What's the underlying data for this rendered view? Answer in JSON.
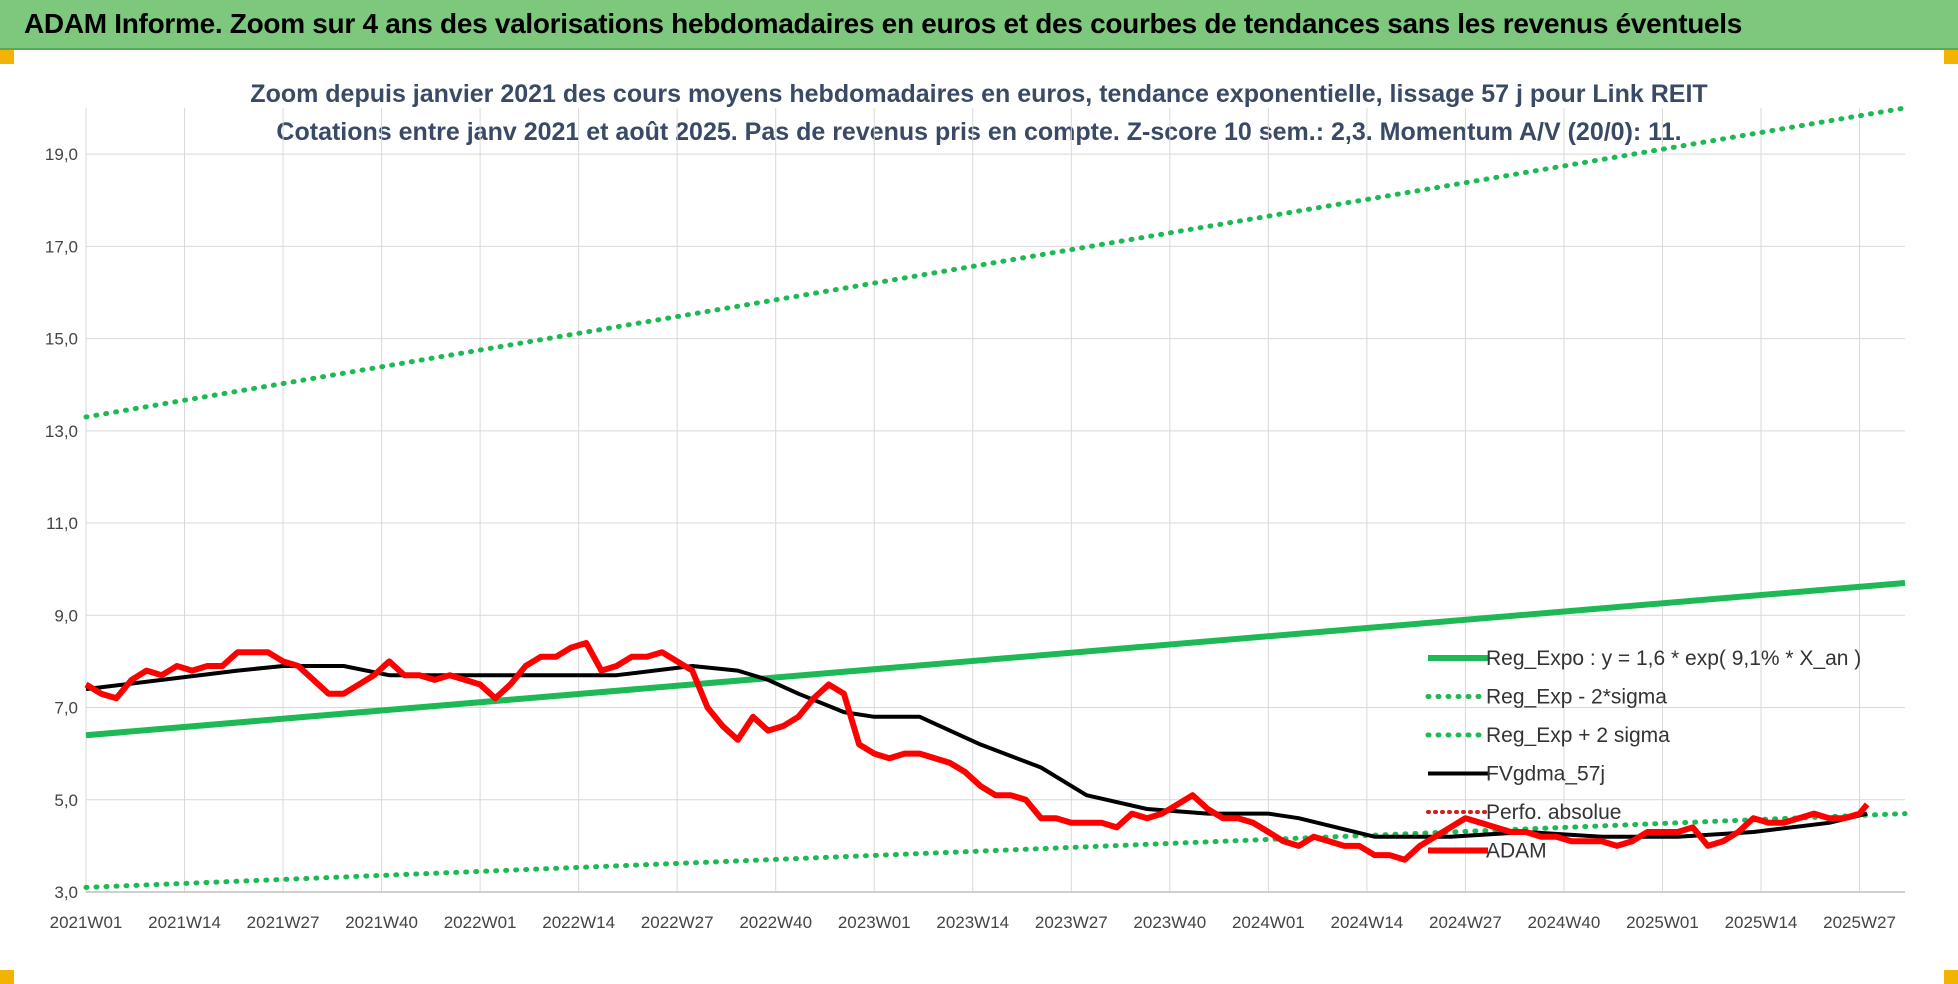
{
  "header": {
    "title": "ADAM Informe. Zoom sur 4 ans des valorisations hebdomadaires en euros et des courbes de tendances sans les revenus éventuels"
  },
  "colors": {
    "banner": "#7ec87e",
    "trend": "#1db954",
    "band": "#1db954",
    "ma": "#000000",
    "price": "#ff0000",
    "perf": "#d22020"
  },
  "chart_data": {
    "type": "line",
    "title": "Zoom depuis janvier 2021 des cours moyens hebdomadaires en euros, tendance exponentielle, lissage 57 j pour Link REIT",
    "subtitle": "Cotations entre janv 2021 et août 2025.  Pas de revenus pris en compte. Z-score 10 sem.: 2,3. Momentum A/V (20/0): 11.",
    "xlabel": "",
    "ylabel": "",
    "ylim": [
      3.0,
      20.0
    ],
    "y_ticks": [
      "3,0",
      "5,0",
      "7,0",
      "9,0",
      "11,0",
      "13,0",
      "15,0",
      "17,0",
      "19,0"
    ],
    "x_ticks": [
      "2021W01",
      "2021W14",
      "2021W27",
      "2021W40",
      "2022W01",
      "2022W14",
      "2022W27",
      "2022W40",
      "2023W01",
      "2023W14",
      "2023W27",
      "2023W40",
      "2024W01",
      "2024W14",
      "2024W27",
      "2024W40",
      "2025W01",
      "2025W14",
      "2025W27"
    ],
    "grid": true,
    "legend_position": "bottom-right",
    "series": [
      {
        "name": "Reg_Expo : y = 1,6 * exp( 9,1% *  X_an )",
        "style": "solid-green",
        "x": [
          0,
          240
        ],
        "values": [
          6.4,
          9.7
        ]
      },
      {
        "name": "Reg_Exp - 2*sigma",
        "style": "dotted-green",
        "x": [
          0,
          240
        ],
        "values": [
          3.1,
          4.7
        ]
      },
      {
        "name": "Reg_Exp + 2 sigma",
        "style": "dotted-green",
        "x": [
          0,
          240
        ],
        "values": [
          13.3,
          20.0
        ]
      },
      {
        "name": "FVgdma_57j",
        "style": "solid-black",
        "x": [
          0,
          10,
          20,
          26,
          34,
          40,
          50,
          60,
          70,
          80,
          86,
          90,
          94,
          100,
          104,
          110,
          118,
          126,
          132,
          140,
          148,
          156,
          160,
          170,
          180,
          190,
          200,
          210,
          220,
          230,
          235
        ],
        "values": [
          7.4,
          7.6,
          7.8,
          7.9,
          7.9,
          7.7,
          7.7,
          7.7,
          7.7,
          7.9,
          7.8,
          7.6,
          7.3,
          6.9,
          6.8,
          6.8,
          6.2,
          5.7,
          5.1,
          4.8,
          4.7,
          4.7,
          4.6,
          4.2,
          4.2,
          4.3,
          4.2,
          4.2,
          4.3,
          4.5,
          4.7
        ]
      },
      {
        "name": "Perfo. absolue",
        "style": "dotted-red",
        "x": [],
        "values": []
      },
      {
        "name": "ADAM",
        "style": "solid-red",
        "x": [
          0,
          2,
          4,
          6,
          8,
          10,
          12,
          14,
          16,
          18,
          20,
          22,
          24,
          26,
          28,
          30,
          32,
          34,
          36,
          38,
          40,
          42,
          44,
          46,
          48,
          50,
          52,
          54,
          56,
          58,
          60,
          62,
          64,
          66,
          68,
          70,
          72,
          74,
          76,
          78,
          80,
          82,
          84,
          86,
          88,
          90,
          92,
          94,
          96,
          98,
          100,
          102,
          104,
          106,
          108,
          110,
          112,
          114,
          116,
          118,
          120,
          122,
          124,
          126,
          128,
          130,
          132,
          134,
          136,
          138,
          140,
          142,
          144,
          146,
          148,
          150,
          152,
          154,
          156,
          158,
          160,
          162,
          164,
          166,
          168,
          170,
          172,
          174,
          176,
          178,
          180,
          182,
          184,
          186,
          188,
          190,
          192,
          194,
          196,
          198,
          200,
          202,
          204,
          206,
          208,
          210,
          212,
          214,
          216,
          218,
          220,
          222,
          224,
          226,
          228,
          230,
          232,
          234,
          235
        ],
        "values": [
          7.5,
          7.3,
          7.2,
          7.6,
          7.8,
          7.7,
          7.9,
          7.8,
          7.9,
          7.9,
          8.2,
          8.2,
          8.2,
          8.0,
          7.9,
          7.6,
          7.3,
          7.3,
          7.5,
          7.7,
          8.0,
          7.7,
          7.7,
          7.6,
          7.7,
          7.6,
          7.5,
          7.2,
          7.5,
          7.9,
          8.1,
          8.1,
          8.3,
          8.4,
          7.8,
          7.9,
          8.1,
          8.1,
          8.2,
          8.0,
          7.8,
          7.0,
          6.6,
          6.3,
          6.8,
          6.5,
          6.6,
          6.8,
          7.2,
          7.5,
          7.3,
          6.2,
          6.0,
          5.9,
          6.0,
          6.0,
          5.9,
          5.8,
          5.6,
          5.3,
          5.1,
          5.1,
          5.0,
          4.6,
          4.6,
          4.5,
          4.5,
          4.5,
          4.4,
          4.7,
          4.6,
          4.7,
          4.9,
          5.1,
          4.8,
          4.6,
          4.6,
          4.5,
          4.3,
          4.1,
          4.0,
          4.2,
          4.1,
          4.0,
          4.0,
          3.8,
          3.8,
          3.7,
          4.0,
          4.2,
          4.4,
          4.6,
          4.5,
          4.4,
          4.3,
          4.3,
          4.2,
          4.2,
          4.1,
          4.1,
          4.1,
          4.0,
          4.1,
          4.3,
          4.3,
          4.3,
          4.4,
          4.0,
          4.1,
          4.3,
          4.6,
          4.5,
          4.5,
          4.6,
          4.7,
          4.6,
          4.6,
          4.7,
          4.9
        ]
      }
    ]
  }
}
